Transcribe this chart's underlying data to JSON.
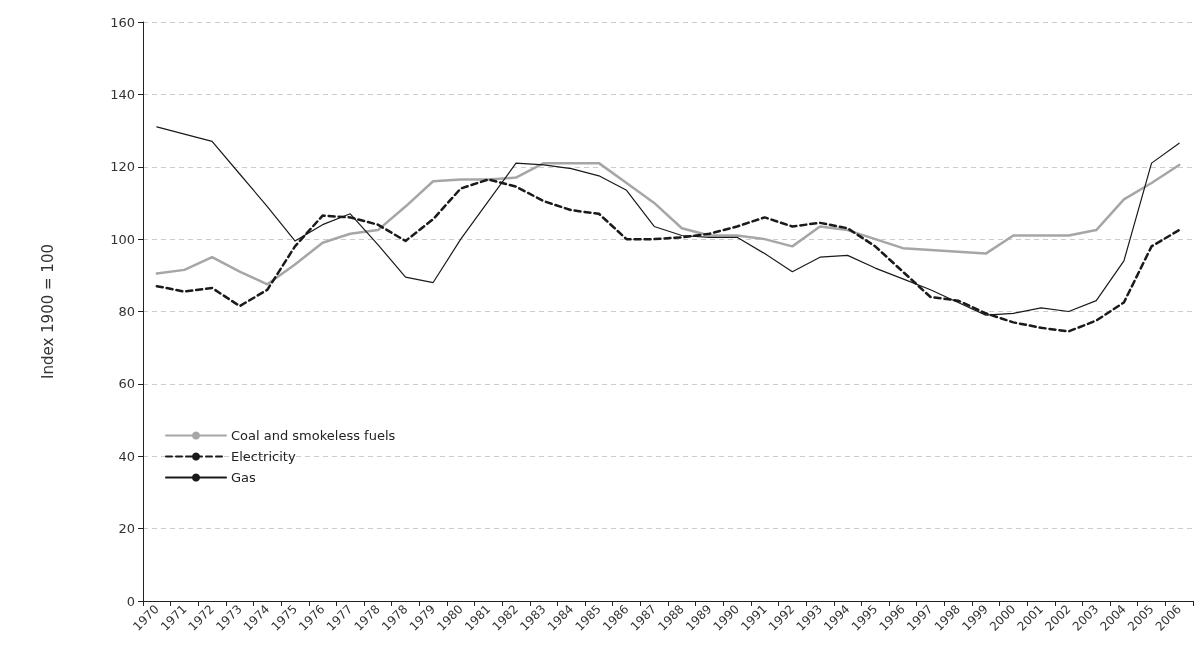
{
  "chart_data": {
    "type": "line",
    "ylabel": "Index 1900 = 100",
    "categories": [
      "1970",
      "1971",
      "1972",
      "1973",
      "1974",
      "1975",
      "1976",
      "1977",
      "1978",
      "1978",
      "1979",
      "1980",
      "1981",
      "1982",
      "1983",
      "1984",
      "1985",
      "1986",
      "1987",
      "1988",
      "1989",
      "1990",
      "1991",
      "1992",
      "1993",
      "1994",
      "1995",
      "1996",
      "1997",
      "1998",
      "1999",
      "2000",
      "2001",
      "2002",
      "2003",
      "2004",
      "2005",
      "2006"
    ],
    "series": [
      {
        "name": "Coal and smokeless fuels",
        "color": "#a6a6a8",
        "line_style": "solid",
        "values": [
          90.5,
          91.5,
          95,
          91,
          87.5,
          93,
          99,
          101.5,
          102.5,
          109,
          116,
          116.5,
          116.5,
          117,
          121,
          121,
          121,
          115.5,
          110,
          103,
          101,
          101,
          100,
          98,
          103.5,
          102.5,
          100,
          97.5,
          97,
          96.5,
          96,
          101,
          101,
          101,
          102.5,
          111,
          115.5,
          120.5
        ]
      },
      {
        "name": "Electricity",
        "color": "#1a1a1a",
        "line_style": "dashed",
        "values": [
          87,
          85.5,
          86.5,
          81.5,
          86,
          98,
          106.5,
          106,
          104,
          99.5,
          105.5,
          114,
          116.5,
          114.5,
          110.5,
          108,
          107,
          100,
          100,
          100.5,
          101.5,
          103.5,
          106,
          103.5,
          104.5,
          103,
          98,
          91,
          84,
          83,
          79.5,
          77,
          75.5,
          74.5,
          77.5,
          82.5,
          98,
          102.5
        ]
      },
      {
        "name": "Gas",
        "color": "#1a1a1a",
        "line_style": "solid",
        "values": [
          131,
          129,
          127,
          118,
          109,
          99.5,
          104,
          107,
          98.5,
          89.5,
          88,
          100,
          110.5,
          121,
          120.5,
          119.5,
          117.5,
          113.5,
          103.5,
          101,
          100.5,
          100.5,
          96,
          91,
          95,
          95.5,
          92,
          89,
          86,
          82.5,
          79,
          79.5,
          81,
          80,
          83,
          94,
          121,
          126.5
        ]
      }
    ],
    "ylim": [
      0,
      160
    ],
    "yticks": [
      0,
      20,
      40,
      60,
      80,
      100,
      120,
      140,
      160
    ],
    "grid": "y",
    "legend": "bottom left",
    "marker": "none"
  }
}
